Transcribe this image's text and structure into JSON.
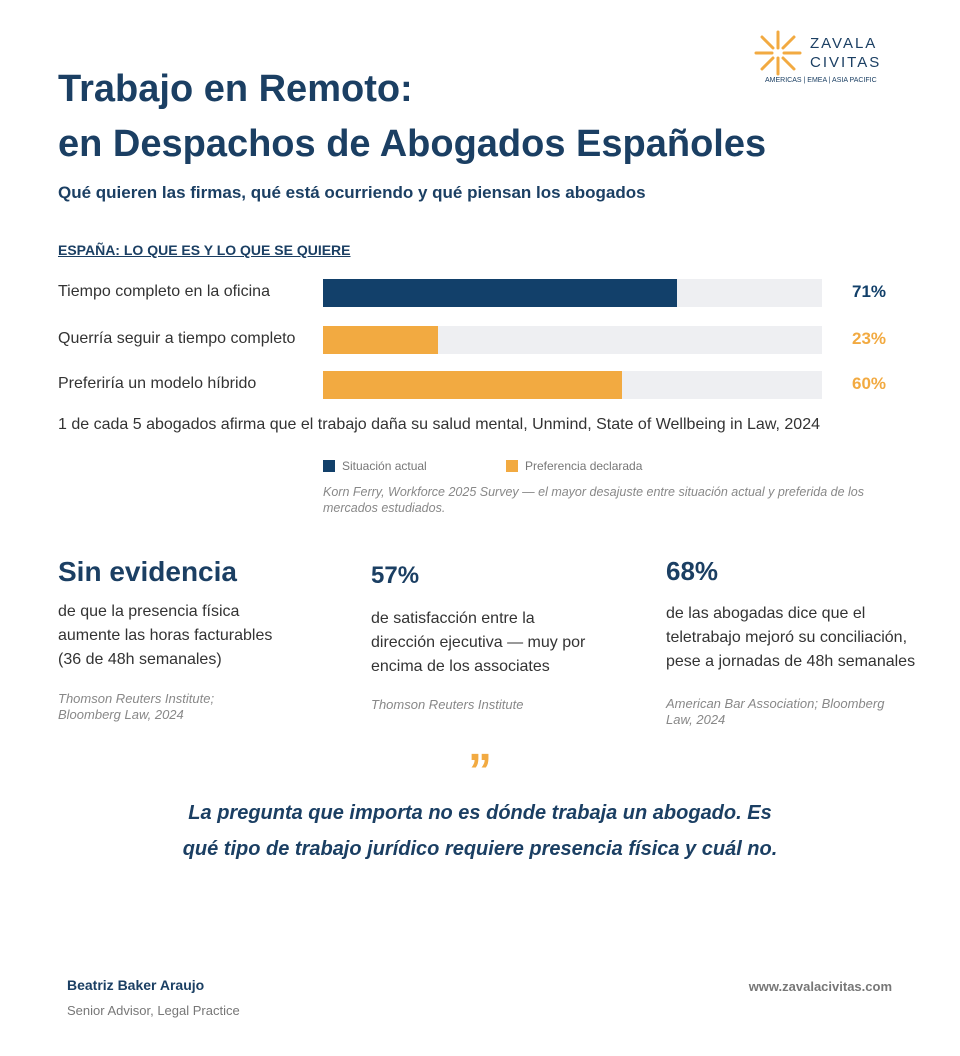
{
  "logo": {
    "name_line1": "ZAVALA",
    "name_line2": "CIVITAS",
    "tagline": "AMERICAS | EMEA | ASIA PACIFIC"
  },
  "header": {
    "title_lines": [
      "Trabajo en Remoto:",
      "en Despachos de Abogados Españoles"
    ],
    "subtitle": "Qué quieren las firmas, qué está ocurriendo y qué piensan los abogados"
  },
  "chart_data": {
    "type": "bar",
    "orientation": "horizontal",
    "title": "ESPAÑA: LO QUE ES Y LO QUE SE QUIERE",
    "categories": [
      "Tiempo completo en la oficina",
      "Querría seguir a tiempo completo",
      "Preferiría un modelo híbrido"
    ],
    "series": [
      {
        "name": "Situación actual",
        "color": "#12406a",
        "values": [
          71,
          null,
          null
        ],
        "value_labels": [
          "71%",
          null,
          null
        ]
      },
      {
        "name": "Preferencia declarada",
        "color": "#f2aa41",
        "values": [
          null,
          23,
          60
        ],
        "value_labels": [
          null,
          "23%",
          "60%"
        ]
      }
    ],
    "xlim": [
      0,
      100
    ],
    "annotation": "1 de cada 5 abogados afirma que el trabajo daña su salud mental, Unmind, State of Wellbeing in Law, 2024",
    "source": "Korn Ferry, Workforce 2025 Survey — el mayor desajuste entre situación actual y preferida de los mercados estudiados."
  },
  "stats": [
    {
      "headline": "Sin evidencia",
      "text_lines": [
        "de que la presencia física",
        "aumente las horas facturables",
        "(36 de 48h semanales)"
      ],
      "source_lines": [
        "Thomson Reuters Institute;",
        "Bloomberg Law, 2024"
      ]
    },
    {
      "headline": "57%",
      "text_lines": [
        "de satisfacción entre la",
        "dirección ejecutiva — muy por",
        "encima de los associates"
      ],
      "source_lines": [
        "Thomson Reuters Institute"
      ]
    },
    {
      "headline": "68%",
      "text_lines": [
        "de las abogadas dice que el",
        "teletrabajo mejoró su conciliación,",
        "pese a jornadas de 48h semanales"
      ],
      "source_lines": [
        "American Bar Association; Bloomberg",
        "Law, 2024"
      ]
    }
  ],
  "quote": {
    "mark": "”",
    "lines": [
      "La pregunta que importa no es dónde trabaja un abogado. Es",
      "qué tipo de trabajo jurídico requiere presencia física y cuál no."
    ]
  },
  "footer": {
    "author": "Beatriz Baker Araujo",
    "role": "Senior Advisor, Legal Practice",
    "url": "www.zavalacivitas.com"
  }
}
